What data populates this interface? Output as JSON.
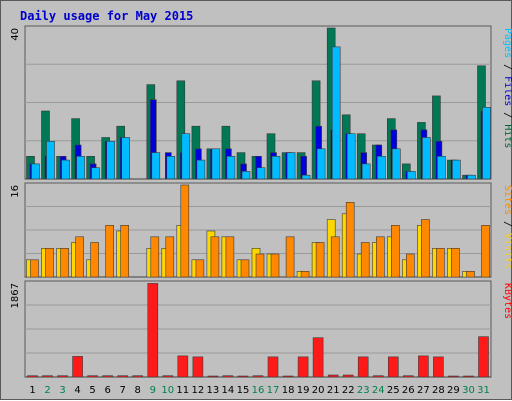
{
  "chart_data": {
    "type": "bar",
    "title": "Daily usage for May 2015",
    "categories": [
      "1",
      "2",
      "3",
      "4",
      "5",
      "6",
      "7",
      "8",
      "9",
      "10",
      "11",
      "12",
      "13",
      "14",
      "15",
      "16",
      "17",
      "18",
      "19",
      "20",
      "21",
      "22",
      "23",
      "24",
      "25",
      "26",
      "27",
      "28",
      "29",
      "30",
      "31"
    ],
    "weekend_days": [
      "2",
      "3",
      "9",
      "10",
      "16",
      "17",
      "23",
      "24",
      "30",
      "31"
    ],
    "panels": [
      {
        "name": "hits-files-pages",
        "ymax_label": "40",
        "ymax": 40,
        "right_label": [
          "Pages",
          "Files",
          "Hits"
        ],
        "right_label_colors": [
          "#00c0ff",
          "#0000cc",
          "#006633"
        ],
        "series": [
          {
            "name": "Hits",
            "color": "#007755",
            "values": [
              6,
              18,
              6,
              16,
              6,
              11,
              14,
              0,
              25,
              0,
              26,
              14,
              8,
              14,
              7,
              6,
              12,
              7,
              7,
              26,
              40,
              17,
              12,
              9,
              16,
              4,
              15,
              22,
              5,
              1,
              30
            ]
          },
          {
            "name": "Files",
            "color": "#0000dd",
            "values": [
              4,
              6,
              6,
              9,
              4,
              10,
              11,
              0,
              21,
              7,
              7,
              8,
              8,
              8,
              4,
              6,
              7,
              7,
              6,
              14,
              13,
              12,
              7,
              9,
              13,
              2,
              13,
              10,
              5,
              1,
              18
            ]
          },
          {
            "name": "Pages",
            "color": "#00bbff",
            "values": [
              4,
              10,
              5,
              6,
              3,
              10,
              11,
              0,
              7,
              6,
              12,
              5,
              8,
              6,
              2,
              3,
              6,
              7,
              1,
              8,
              35,
              12,
              4,
              6,
              8,
              2,
              11,
              6,
              5,
              1,
              19
            ]
          }
        ]
      },
      {
        "name": "visits-sites",
        "ymax_label": "16",
        "ymax": 16,
        "right_label": [
          "Sites",
          "Visits"
        ],
        "right_label_colors": [
          "#ff8800",
          "#ffcc00"
        ],
        "series": [
          {
            "name": "Visits",
            "color": "#ffd700",
            "values": [
              3,
              5,
              5,
              6,
              3,
              0,
              8,
              0,
              5,
              5,
              9,
              3,
              8,
              7,
              3,
              5,
              4,
              0,
              1,
              6,
              10,
              11,
              4,
              6,
              7,
              3,
              9,
              5,
              5,
              1,
              0
            ]
          },
          {
            "name": "Sites",
            "color": "#ff8800",
            "values": [
              3,
              5,
              5,
              7,
              6,
              9,
              9,
              0,
              7,
              7,
              16,
              3,
              7,
              7,
              3,
              4,
              4,
              7,
              1,
              6,
              7,
              13,
              6,
              7,
              9,
              4,
              10,
              5,
              5,
              1,
              9
            ]
          }
        ]
      },
      {
        "name": "kbytes",
        "ymax_label": "1867",
        "ymax": 1867,
        "right_label": [
          "KBytes"
        ],
        "right_label_colors": [
          "#ff0000"
        ],
        "series": [
          {
            "name": "KBytes",
            "color": "#ff1a1a",
            "values": [
              25,
              25,
              25,
              410,
              25,
              25,
              25,
              25,
              1860,
              25,
              420,
              400,
              20,
              25,
              20,
              25,
              400,
              20,
              400,
              780,
              40,
              40,
              400,
              25,
              400,
              25,
              420,
              400,
              20,
              20,
              800
            ]
          }
        ]
      }
    ]
  }
}
